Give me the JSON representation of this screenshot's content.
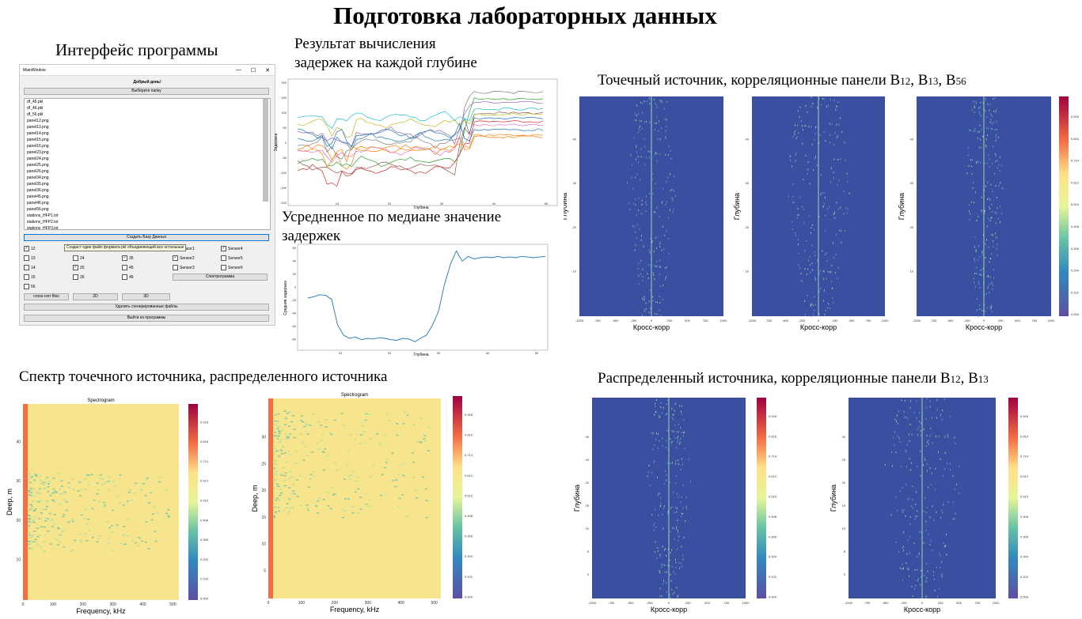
{
  "title": "Подготовка лабораторных данных",
  "captions": {
    "interface": "Интерфейс программы",
    "delays_line1": "Результат вычисления",
    "delays_line2": "задержек на каждой глубине",
    "median_line1": "Усредненное по медиане значение",
    "median_line2": "задержек",
    "point_prefix": "Точечный источник, корреляционные панели B",
    "point_b1": "12",
    "point_sep1": ",  B",
    "point_b2": "13",
    "point_sep2": ", B",
    "point_b3": "56",
    "spectrum": "Спектр точечного источника, распределенного источника",
    "dist_prefix": "Распределенный источника, корреляционные панели B",
    "dist_b1": "12",
    "dist_sep1": ",  B",
    "dist_b2": "13"
  },
  "window": {
    "title": "MainWindow",
    "greeting": "Добрый день!",
    "choose_folder": "Выберите папку",
    "files": [
      "df_45.pkl",
      "df_46.pkl",
      "df_56.pkl",
      "panel12.png",
      "panel13.png",
      "panel14.png",
      "panel15.png",
      "panel16.png",
      "panel23.png",
      "panel24.png",
      "panel25.png",
      "panel26.png",
      "panel34.png",
      "panel35.png",
      "panel36.png",
      "panel45.png",
      "panel46.png",
      "panel56.png",
      "stations_HFP1.txt",
      "stations_HFP2.txt",
      "stations_HFP3.txt"
    ],
    "create_db": "Создать Базу Данных",
    "tooltip": "Создаст один файл формата pkl объединяющий все остальные",
    "checkboxes": [
      {
        "label": "12",
        "checked": true
      },
      {
        "label": "23",
        "checked": false
      },
      {
        "label": "34",
        "checked": true
      },
      {
        "label": "Sensor1",
        "checked": true
      },
      {
        "label": "Sensor4",
        "checked": true
      },
      {
        "label": "13",
        "checked": false
      },
      {
        "label": "24",
        "checked": false
      },
      {
        "label": "35",
        "checked": true
      },
      {
        "label": "Sensor2",
        "checked": true
      },
      {
        "label": "Sensor5",
        "checked": false
      },
      {
        "label": "14",
        "checked": false
      },
      {
        "label": "25",
        "checked": true
      },
      {
        "label": "45",
        "checked": false
      },
      {
        "label": "Sensor3",
        "checked": false
      },
      {
        "label": "Sensor6",
        "checked": false
      },
      {
        "label": "15",
        "checked": false
      },
      {
        "label": "26",
        "checked": false
      },
      {
        "label": "46",
        "checked": false
      },
      {
        "label": "16",
        "checked": false
      },
      {
        "label": "34",
        "checked": false
      },
      {
        "label": "56",
        "checked": false
      }
    ],
    "spectrogram_btn": "Спектрограмма",
    "cross_corr_btn": "cross-corr files",
    "btn_2d": "2D",
    "btn_3d": "3D",
    "delete_btn": "Удалить сгенерированные файлы",
    "exit_btn": "Выйти из программы"
  },
  "delay_plot": {
    "ylabel": "Задержка",
    "xlabel": "Глубина",
    "yticks": [
      "200",
      "150",
      "100",
      "50",
      "0",
      "-50",
      "-100",
      "-150",
      "-200"
    ],
    "xticks": [
      "10",
      "20",
      "30",
      "40",
      "50"
    ]
  },
  "median_plot": {
    "ylabel": "Средняя задержка",
    "xlabel": "Глубина",
    "yticks": [
      "60",
      "40",
      "20",
      "0",
      "-20",
      "-40",
      "-60",
      "-80"
    ],
    "xticks": [
      "10",
      "20",
      "30",
      "40",
      "50"
    ]
  },
  "corr_panels": {
    "ylabel": "Глубина",
    "xlabel": "Кросс-корр",
    "xticks_point": [
      "-1000",
      "-750",
      "-500",
      "-250",
      "0",
      "250",
      "500",
      "750",
      "1000"
    ],
    "yticks_point": [
      "40",
      "30",
      "20",
      "10"
    ],
    "yticks_dist": [
      "30",
      "25",
      "20",
      "15",
      "10",
      "5",
      "0"
    ],
    "colorbar": [
      "0.918",
      "0.816",
      "0.714",
      "0.612",
      "0.510",
      "0.408",
      "0.306",
      "0.204",
      "0.102",
      "0.000"
    ]
  },
  "spectrograms": {
    "title": "Spectrogram",
    "xlabel": "Frequency, kHz",
    "ylabel": "Deep, m",
    "xticks": [
      "0",
      "100",
      "200",
      "300",
      "400",
      "500"
    ],
    "yticks_a": [
      "40",
      "30",
      "20",
      "10"
    ],
    "yticks_b": [
      "30",
      "25",
      "20",
      "15",
      "10",
      "5"
    ],
    "colorbar": [
      "0.918",
      "0.816",
      "0.714",
      "0.612",
      "0.510",
      "0.408",
      "0.306",
      "0.204",
      "0.102",
      "0.000"
    ]
  },
  "colors": {
    "corr_bg": "#3b4fa0",
    "spec_bg": "#f6e58d",
    "median_line": "#1f77b4"
  }
}
